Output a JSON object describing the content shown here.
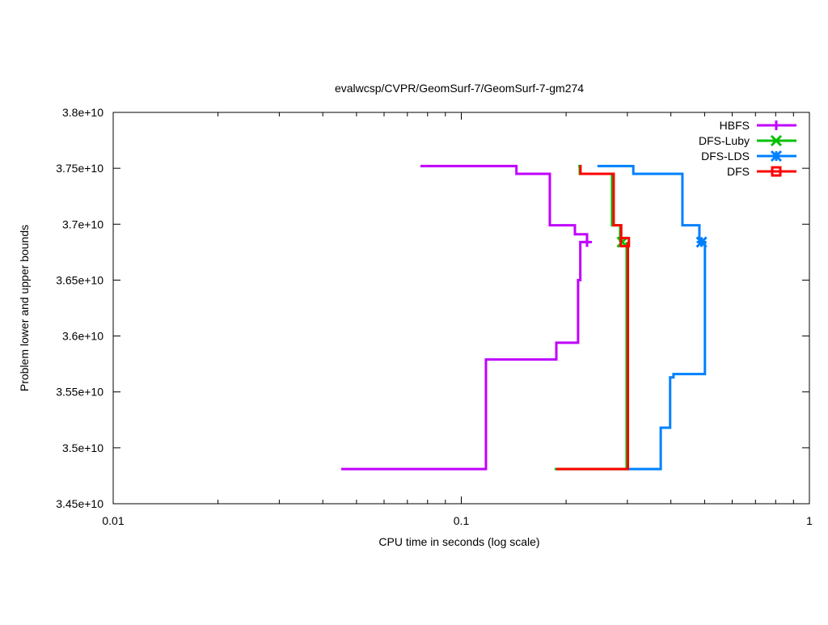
{
  "chart_data": {
    "type": "line",
    "title": "evalwcsp/CVPR/GeomSurf-7/GeomSurf-7-gm274",
    "xlabel": "CPU time in seconds (log scale)",
    "ylabel": "Problem lower and upper bounds",
    "xscale": "log",
    "xlim": [
      0.01,
      1
    ],
    "ylim": [
      34500000000.0,
      38000000000.0
    ],
    "y_unit": 10000000000.0,
    "xticks": [
      {
        "value": 0.01,
        "label": "0.01"
      },
      {
        "value": 0.1,
        "label": "0.1"
      },
      {
        "value": 1,
        "label": "1"
      }
    ],
    "yticks": [
      {
        "value": 3.45,
        "label": "3.45e+10"
      },
      {
        "value": 3.5,
        "label": "3.5e+10"
      },
      {
        "value": 3.55,
        "label": "3.55e+10"
      },
      {
        "value": 3.6,
        "label": "3.6e+10"
      },
      {
        "value": 3.65,
        "label": "3.65e+10"
      },
      {
        "value": 3.7,
        "label": "3.7e+10"
      },
      {
        "value": 3.75,
        "label": "3.75e+10"
      },
      {
        "value": 3.8,
        "label": "3.8e+10"
      }
    ],
    "legend_position": "top-right",
    "grid": false,
    "series": [
      {
        "name": "HBFS",
        "color": "#c000ff",
        "marker": "plus",
        "upper": [
          [
            0.0763,
            3.752
          ],
          [
            0.144,
            3.745
          ],
          [
            0.1796,
            3.699
          ],
          [
            0.212,
            3.691
          ],
          [
            0.2297,
            3.684
          ]
        ],
        "lower": [
          [
            0.0452,
            3.481
          ],
          [
            0.1177,
            3.579
          ],
          [
            0.1875,
            3.594
          ],
          [
            0.2165,
            3.65
          ],
          [
            0.2197,
            3.684
          ],
          [
            0.2297,
            3.684
          ]
        ],
        "final": [
          0.2297,
          3.684
        ]
      },
      {
        "name": "DFS-Luby",
        "color": "#00c000",
        "marker": "cross",
        "upper": [
          [
            0.2167,
            3.752
          ],
          [
            0.219,
            3.745
          ],
          [
            0.271,
            3.699
          ],
          [
            0.286,
            3.684
          ]
        ],
        "lower": [
          [
            0.1854,
            3.481
          ],
          [
            0.2985,
            3.684
          ]
        ],
        "final": [
          0.29,
          3.684
        ]
      },
      {
        "name": "DFS-LDS",
        "color": "#0080ff",
        "marker": "star",
        "upper": [
          [
            0.246,
            3.752
          ],
          [
            0.312,
            3.745
          ],
          [
            0.4317,
            3.699
          ],
          [
            0.483,
            3.684
          ]
        ],
        "lower": [
          [
            0.301,
            3.481
          ],
          [
            0.374,
            3.518
          ],
          [
            0.398,
            3.563
          ],
          [
            0.407,
            3.566
          ],
          [
            0.501,
            3.684
          ]
        ],
        "final": [
          0.49,
          3.684
        ]
      },
      {
        "name": "DFS",
        "color": "#ff0000",
        "marker": "square",
        "upper": [
          [
            0.219,
            3.752
          ],
          [
            0.22,
            3.745
          ],
          [
            0.274,
            3.699
          ],
          [
            0.288,
            3.684
          ]
        ],
        "lower": [
          [
            0.1875,
            3.481
          ],
          [
            0.301,
            3.684
          ]
        ],
        "final": [
          0.295,
          3.684
        ]
      }
    ]
  }
}
